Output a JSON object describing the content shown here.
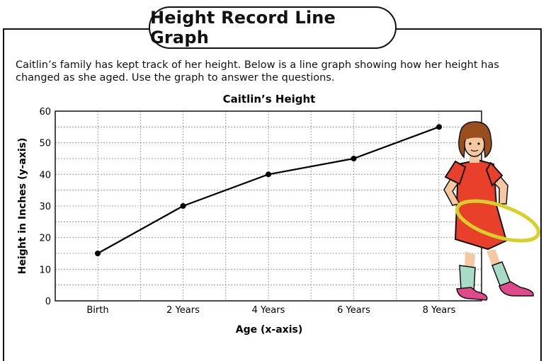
{
  "page": {
    "title": "Height Record Line Graph",
    "intro_line1": "Caitlin’s family has kept track of her height.  Below is a line graph showing how her height has",
    "intro_line2": "changed as she aged.  Use the graph to answer the questions."
  },
  "chart_data": {
    "type": "line",
    "title": "Caitlin’s Height",
    "xlabel": "Age (x-axis)",
    "ylabel": "Height in Inches (y-axis)",
    "categories": [
      "Birth",
      "2 Years",
      "4 Years",
      "6 Years",
      "8 Years"
    ],
    "values": [
      15,
      30,
      40,
      45,
      55
    ],
    "ylim": [
      0,
      60
    ],
    "yticks": [
      0,
      10,
      20,
      30,
      40,
      50,
      60
    ],
    "grid": true,
    "line_color": "#000000"
  },
  "colors": {
    "dress": "#e8402a",
    "hair": "#9a4e1e",
    "skin": "#f6c8a0",
    "hoop": "#d8d028",
    "socks": "#a8dcc8",
    "shoes": "#e04a8a"
  }
}
